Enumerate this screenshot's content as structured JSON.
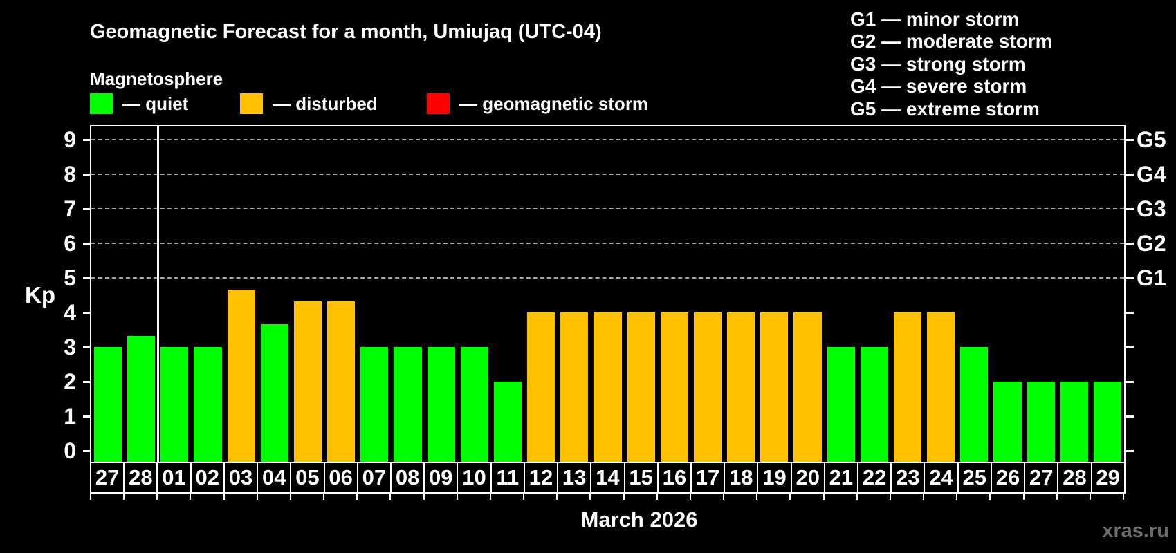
{
  "header": {
    "title": "Geomagnetic Forecast for a month, Umiujaq (UTC-04)",
    "subtitle": "Magnetosphere"
  },
  "legend": {
    "items": [
      {
        "key": "quiet",
        "label": "— quiet",
        "color": "#00ff00"
      },
      {
        "key": "disturbed",
        "label": "— disturbed",
        "color": "#ffc000"
      },
      {
        "key": "storm",
        "label": "— geomagnetic storm",
        "color": "#ff0000"
      }
    ]
  },
  "g_scale_legend": {
    "lines": [
      "G1 — minor storm",
      "G2 — moderate storm",
      "G3 — strong storm",
      "G4 — severe storm",
      "G5 — extreme storm"
    ]
  },
  "watermark": "xras.ru",
  "chart_data": {
    "type": "bar",
    "title": "Geomagnetic Forecast for a month, Umiujaq (UTC-04)",
    "ylabel": "Kp",
    "xlabel": "March 2026",
    "ylim": [
      0,
      9.4
    ],
    "yticks": [
      0,
      1,
      2,
      3,
      4,
      5,
      6,
      7,
      8,
      9
    ],
    "grid": "dashed horizontal lines at Kp 5-9 (G1-G5 levels)",
    "gridlines_at_kp": [
      5,
      6,
      7,
      8,
      9
    ],
    "right_axis_labels": [
      {
        "label": "G1",
        "kp": 5
      },
      {
        "label": "G2",
        "kp": 6
      },
      {
        "label": "G3",
        "kp": 7
      },
      {
        "label": "G4",
        "kp": 8
      },
      {
        "label": "G5",
        "kp": 9
      }
    ],
    "month_boundary_after_index": 1,
    "legend_position": "top-left",
    "categories": [
      "27",
      "28",
      "01",
      "02",
      "03",
      "04",
      "05",
      "06",
      "07",
      "08",
      "09",
      "10",
      "11",
      "12",
      "13",
      "14",
      "15",
      "16",
      "17",
      "18",
      "19",
      "20",
      "21",
      "22",
      "23",
      "24",
      "25",
      "26",
      "27",
      "28",
      "29"
    ],
    "values": [
      3,
      3.33,
      3,
      3,
      4.67,
      3.67,
      4.33,
      4.33,
      3,
      3,
      3,
      3,
      2,
      4,
      4,
      4,
      4,
      4,
      4,
      4,
      4,
      4,
      3,
      3,
      4,
      4,
      3,
      2,
      2,
      2,
      2
    ],
    "statuses": [
      "quiet",
      "quiet",
      "quiet",
      "quiet",
      "disturbed",
      "quiet",
      "disturbed",
      "disturbed",
      "quiet",
      "quiet",
      "quiet",
      "quiet",
      "quiet",
      "disturbed",
      "disturbed",
      "disturbed",
      "disturbed",
      "disturbed",
      "disturbed",
      "disturbed",
      "disturbed",
      "disturbed",
      "quiet",
      "quiet",
      "disturbed",
      "disturbed",
      "quiet",
      "quiet",
      "quiet",
      "quiet",
      "quiet"
    ],
    "status_colors": {
      "quiet": "#00ff00",
      "disturbed": "#ffc000",
      "storm": "#ff0000"
    }
  }
}
